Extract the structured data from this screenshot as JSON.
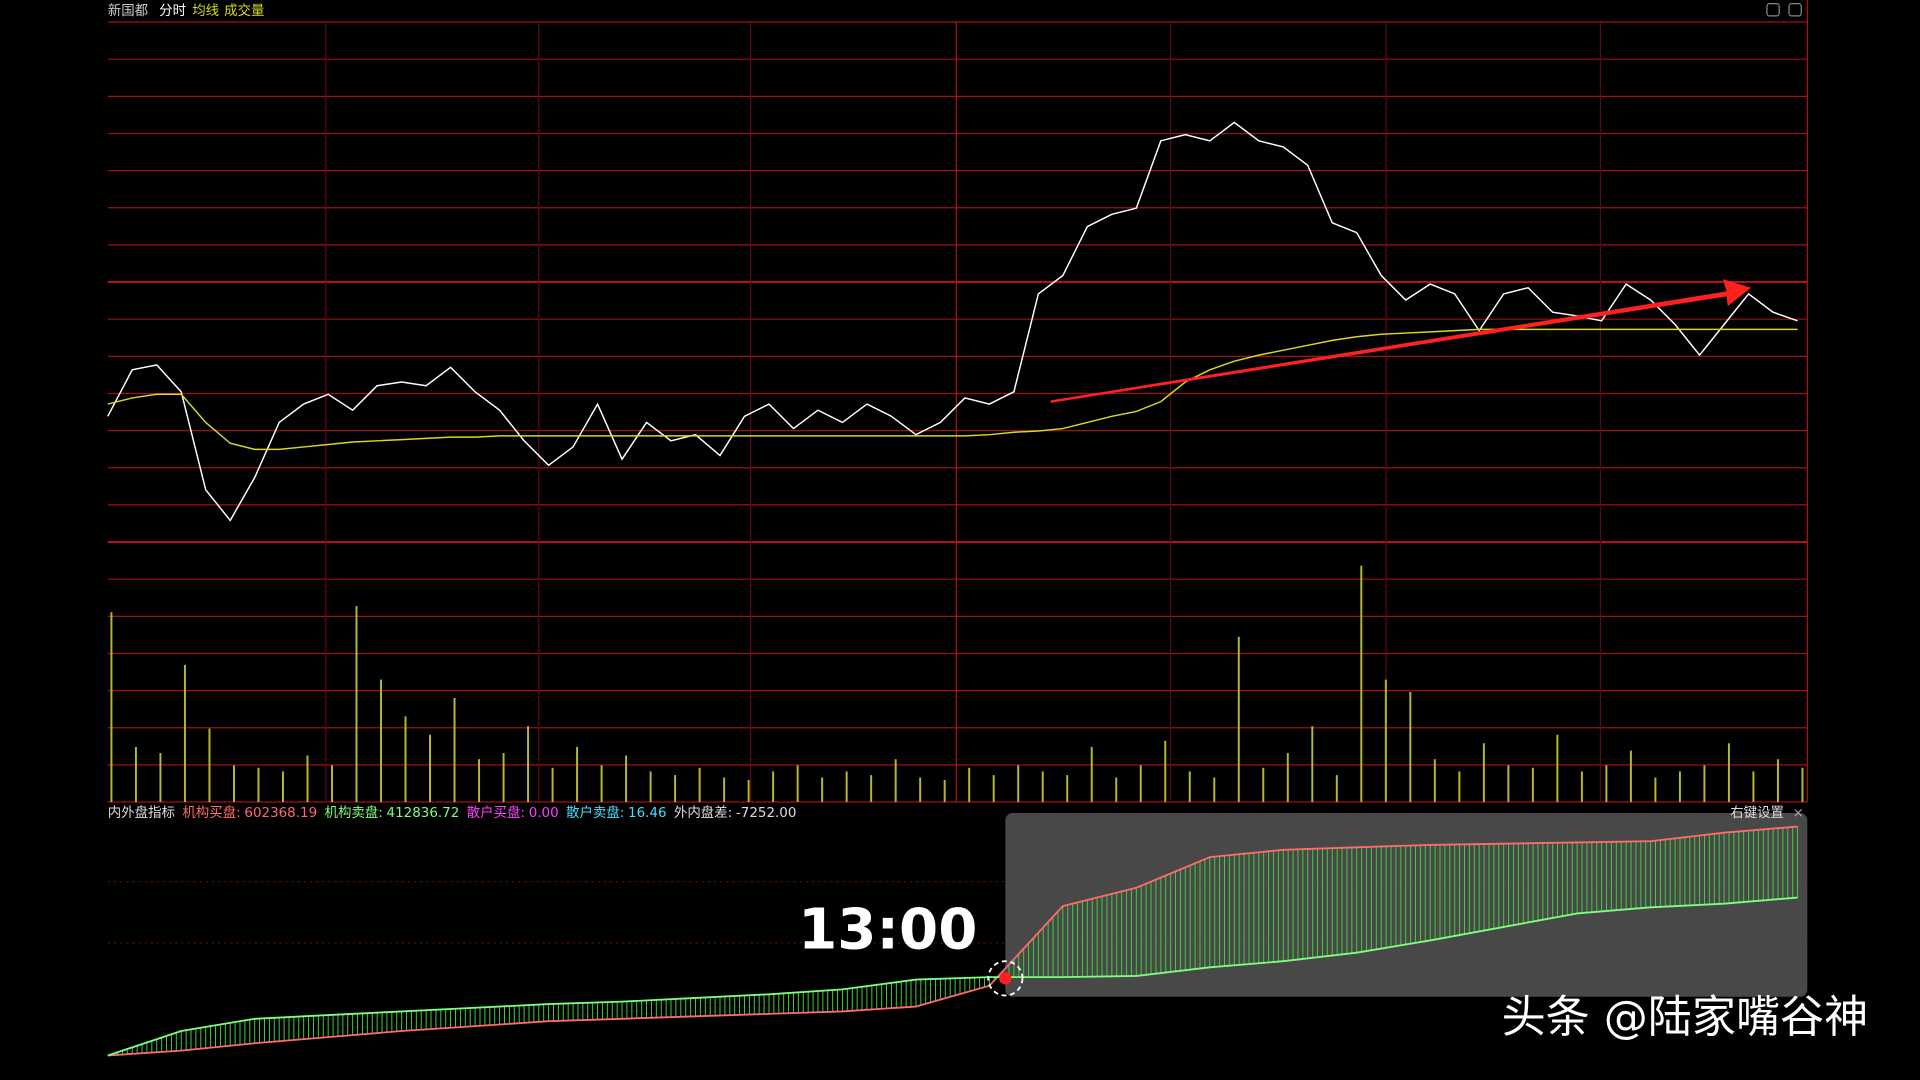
{
  "chart_data": [
    {
      "type": "line",
      "title": "新国都",
      "ylim": [
        0,
        425
      ],
      "series": [
        {
          "name": "分时",
          "color": "#ffffff",
          "values": [
            103,
            141,
            145,
            123,
            43,
            18,
            53,
            98,
            113,
            121,
            108,
            128,
            131,
            128,
            143,
            123,
            108,
            83,
            63,
            78,
            113,
            68,
            98,
            83,
            88,
            71,
            103,
            113,
            93,
            108,
            98,
            113,
            103,
            88,
            98,
            118,
            113,
            123,
            203,
            218,
            258,
            268,
            273,
            328,
            333,
            328,
            343,
            328,
            323,
            308,
            261,
            253,
            218,
            198,
            211,
            203,
            173,
            203,
            208,
            188,
            185,
            181,
            211,
            198,
            178,
            153,
            178,
            203,
            188,
            181
          ]
        },
        {
          "name": "均线",
          "color": "#d8d820",
          "values": [
            113,
            118,
            121,
            121,
            98,
            81,
            76,
            76,
            78,
            80,
            82,
            83,
            84,
            85,
            86,
            86,
            87,
            87,
            87,
            87,
            87,
            87,
            87,
            87,
            87,
            87,
            87,
            87,
            87,
            87,
            87,
            87,
            87,
            87,
            87,
            87,
            88,
            90,
            91,
            93,
            98,
            103,
            107,
            115,
            131,
            141,
            148,
            153,
            157,
            161,
            165,
            168,
            170,
            171,
            172,
            173,
            174,
            174,
            174,
            174,
            174,
            174,
            174,
            174,
            174,
            174,
            174,
            174,
            174,
            174
          ]
        }
      ]
    },
    {
      "type": "bar",
      "title": "成交量",
      "color": "#b8b830",
      "ylim": [
        0,
        200
      ],
      "values": [
        155,
        45,
        40,
        112,
        60,
        30,
        28,
        25,
        38,
        30,
        160,
        100,
        70,
        55,
        85,
        35,
        40,
        62,
        28,
        45,
        30,
        38,
        25,
        22,
        28,
        20,
        18,
        25,
        30,
        20,
        25,
        22,
        35,
        20,
        18,
        28,
        22,
        30,
        25,
        22,
        45,
        20,
        30,
        50,
        25,
        20,
        135,
        28,
        40,
        62,
        22,
        193,
        100,
        90,
        35,
        25,
        48,
        30,
        28,
        55,
        25,
        30,
        42,
        20,
        25,
        30,
        48,
        25,
        35,
        28
      ]
    },
    {
      "type": "band",
      "title": "内外盘指标",
      "ylim": [
        0,
        200
      ],
      "series": [
        {
          "name": "机构买盘:",
          "value_label": "602368.19",
          "color": "#ff6a6a",
          "values": [
            3,
            7,
            13,
            18,
            23,
            27,
            31,
            33,
            35,
            37,
            39,
            43,
            60,
            125,
            140,
            165,
            171,
            173,
            175,
            176,
            177,
            178,
            185,
            190
          ]
        },
        {
          "name": "机构卖盘:",
          "value_label": "412836.72",
          "color": "#7cff7c",
          "values": [
            3,
            23,
            33,
            36,
            39,
            42,
            45,
            47,
            50,
            53,
            57,
            65,
            67,
            67,
            68,
            75,
            80,
            87,
            97,
            108,
            119,
            124,
            127,
            132
          ]
        }
      ],
      "readouts": [
        {
          "name": "散户买盘:",
          "value_label": "0.00",
          "color": "#ff40ff"
        },
        {
          "name": "散户卖盘:",
          "value_label": "16.46",
          "color": "#40e0ff"
        },
        {
          "name": "外内盘差:",
          "value_label": "-7252.00",
          "color": "#dddddd"
        }
      ],
      "settings_label": "右键设置",
      "close_label": "×"
    }
  ],
  "annotation": {
    "time_label": "13:00"
  },
  "watermark": "头条 @陆家嘴谷神"
}
